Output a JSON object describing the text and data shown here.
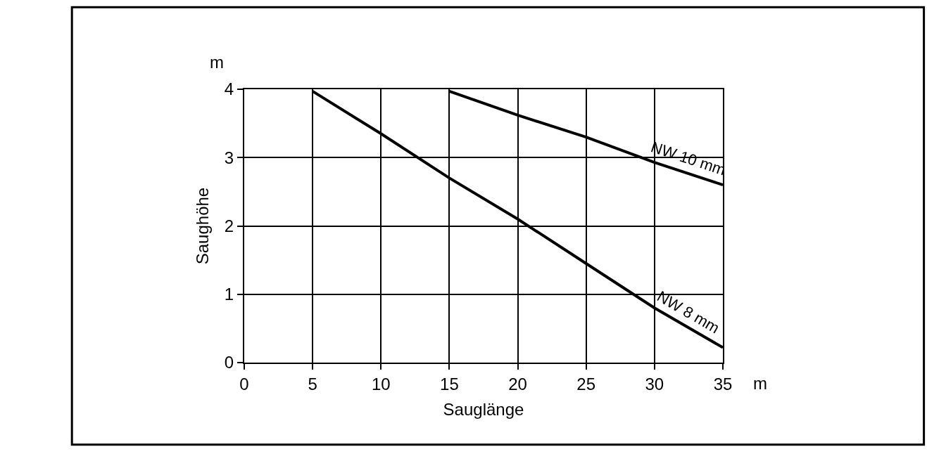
{
  "chart_data": {
    "type": "line",
    "xlabel": "Sauglänge",
    "ylabel": "Saughöhe",
    "annotations": [
      "m",
      "m"
    ],
    "series": [
      {
        "name": "NW 10 mm",
        "color": "#000000",
        "x": [
          15,
          20,
          25,
          30,
          35
        ],
        "values": [
          3.97,
          3.62,
          3.3,
          2.93,
          2.6
        ]
      },
      {
        "name": "NW 8 mm",
        "color": "#000000",
        "x": [
          5,
          10,
          15,
          20,
          25,
          30,
          35
        ],
        "values": [
          3.97,
          3.35,
          2.7,
          2.1,
          1.45,
          0.8,
          0.22
        ]
      }
    ],
    "xlim": [
      0,
      35
    ],
    "xticks": [
      0,
      5,
      10,
      15,
      20,
      25,
      30,
      35
    ],
    "ylim": [
      0,
      4
    ],
    "yticks": [
      0,
      1,
      2,
      3,
      4
    ],
    "grid": true,
    "legend": false,
    "marker": "none",
    "line_style": "solid"
  }
}
